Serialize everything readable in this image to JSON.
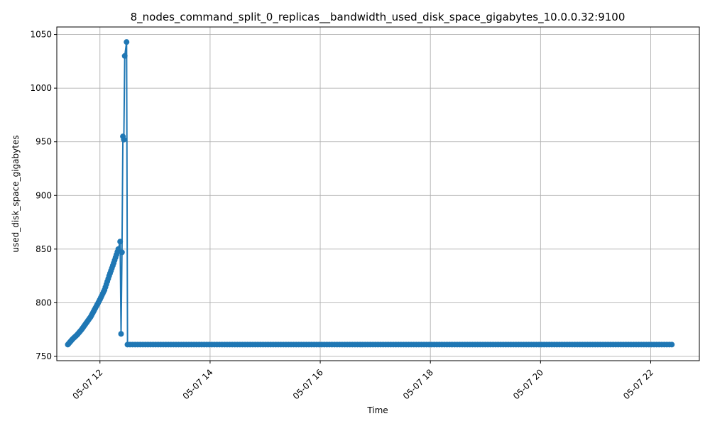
{
  "chart_data": {
    "type": "line",
    "title": "8_nodes_command_split_0_replicas__bandwidth_used_disk_space_gigabytes_10.0.0.32:9100",
    "xlabel": "Time",
    "ylabel": "used_disk_space_gigabytes",
    "x_axis_type": "datetime",
    "xlim": [
      "2024-05-07T11:13",
      "2024-05-07T22:53"
    ],
    "ylim": [
      746,
      1057
    ],
    "x_ticks": [
      {
        "value": "2024-05-07T12:00",
        "label": "05-07 12"
      },
      {
        "value": "2024-05-07T14:00",
        "label": "05-07 14"
      },
      {
        "value": "2024-05-07T16:00",
        "label": "05-07 16"
      },
      {
        "value": "2024-05-07T18:00",
        "label": "05-07 18"
      },
      {
        "value": "2024-05-07T20:00",
        "label": "05-07 20"
      },
      {
        "value": "2024-05-07T22:00",
        "label": "05-07 22"
      }
    ],
    "y_ticks": [
      750,
      800,
      850,
      900,
      950,
      1000,
      1050
    ],
    "grid": true,
    "legend": "none",
    "series": [
      {
        "color": "#1f77b4",
        "marker": "circle",
        "points": [
          {
            "x": "2024-05-07T11:25",
            "y": 761
          },
          {
            "x": "2024-05-07T11:30",
            "y": 766
          },
          {
            "x": "2024-05-07T11:35",
            "y": 770
          },
          {
            "x": "2024-05-07T11:40",
            "y": 775
          },
          {
            "x": "2024-05-07T11:45",
            "y": 781
          },
          {
            "x": "2024-05-07T11:50",
            "y": 787
          },
          {
            "x": "2024-05-07T11:55",
            "y": 795
          },
          {
            "x": "2024-05-07T12:00",
            "y": 803
          },
          {
            "x": "2024-05-07T12:05",
            "y": 812
          },
          {
            "x": "2024-05-07T12:10",
            "y": 825
          },
          {
            "x": "2024-05-07T12:15",
            "y": 837
          },
          {
            "x": "2024-05-07T12:20",
            "y": 850
          },
          {
            "x": "2024-05-07T12:22",
            "y": 857
          },
          {
            "x": "2024-05-07T12:23",
            "y": 771
          },
          {
            "x": "2024-05-07T12:24",
            "y": 847
          },
          {
            "x": "2024-05-07T12:25",
            "y": 955
          },
          {
            "x": "2024-05-07T12:26",
            "y": 952
          },
          {
            "x": "2024-05-07T12:27",
            "y": 1030
          },
          {
            "x": "2024-05-07T12:29",
            "y": 1043
          },
          {
            "x": "2024-05-07T12:30",
            "y": 761
          },
          {
            "x": "2024-05-07T22:23",
            "y": 761
          }
        ]
      }
    ]
  }
}
